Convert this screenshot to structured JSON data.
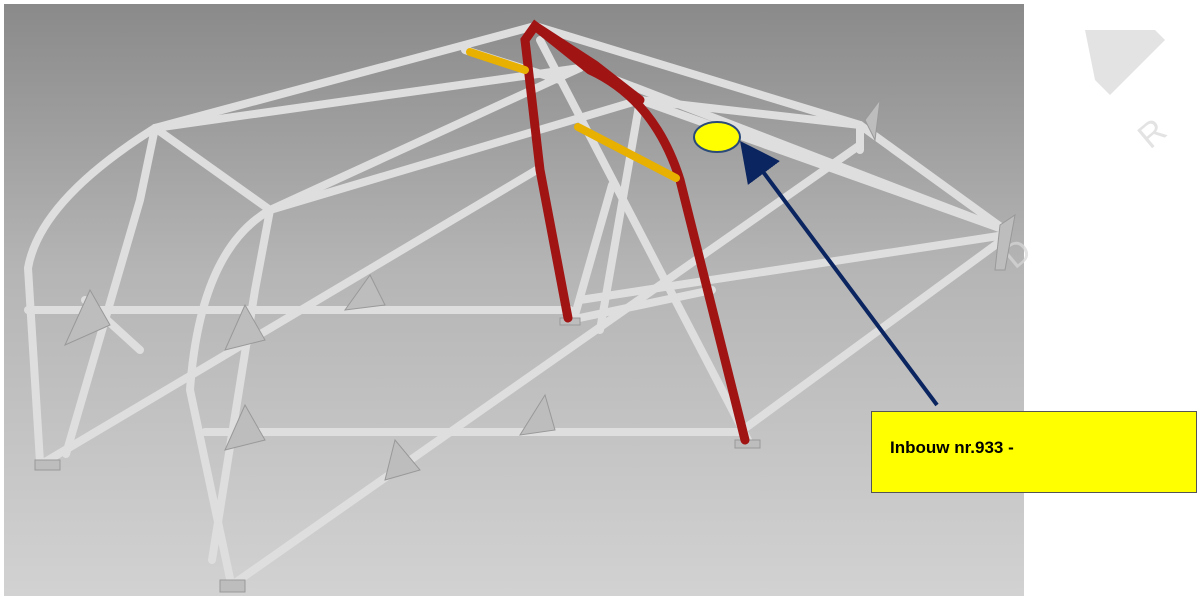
{
  "callout": {
    "text": "Inbouw nr.933 -"
  },
  "colors": {
    "tube": "#d9d9d9",
    "tube_shadow": "#9a9a9a",
    "main_hoop": "#a01414",
    "highlight_bars": "#e8b000",
    "callout_fill": "#ffff00",
    "arrow": "#0b2560",
    "watermark": "#d0d0d0"
  },
  "icons": [
    "roll-cage-render",
    "yellow-marker-ellipse",
    "callout-arrow"
  ]
}
